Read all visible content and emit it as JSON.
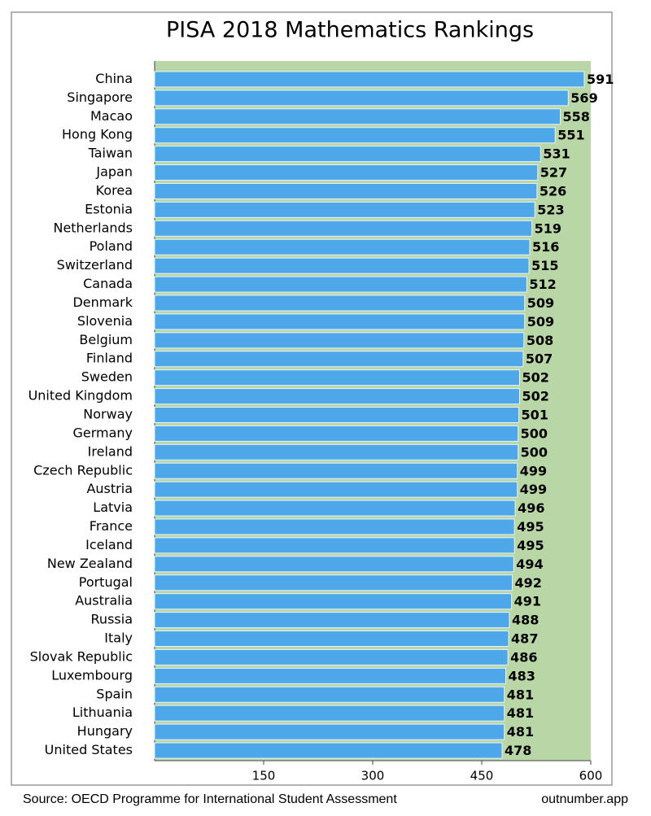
{
  "chart_data": {
    "type": "bar",
    "orientation": "horizontal",
    "title": "PISA 2018 Mathematics Rankings",
    "categories": [
      "China",
      "Singapore",
      "Macao",
      "Hong Kong",
      "Taiwan",
      "Japan",
      "Korea",
      "Estonia",
      "Netherlands",
      "Poland",
      "Switzerland",
      "Canada",
      "Denmark",
      "Slovenia",
      "Belgium",
      "Finland",
      "Sweden",
      "United Kingdom",
      "Norway",
      "Germany",
      "Ireland",
      "Czech Republic",
      "Austria",
      "Latvia",
      "France",
      "Iceland",
      "New Zealand",
      "Portugal",
      "Australia",
      "Russia",
      "Italy",
      "Slovak Republic",
      "Luxembourg",
      "Spain",
      "Lithuania",
      "Hungary",
      "United States"
    ],
    "values": [
      591,
      569,
      558,
      551,
      531,
      527,
      526,
      523,
      519,
      516,
      515,
      512,
      509,
      509,
      508,
      507,
      502,
      502,
      501,
      500,
      500,
      499,
      499,
      496,
      495,
      495,
      494,
      492,
      491,
      488,
      487,
      486,
      483,
      481,
      481,
      481,
      478
    ],
    "color": "#4ea7e8",
    "background": "#b9d6a6",
    "xlim": [
      0,
      600
    ],
    "xticks": [
      150,
      300,
      450,
      600
    ],
    "source": "Source: OECD Programme for International Student Assessment",
    "credit": "outnumber.app"
  }
}
